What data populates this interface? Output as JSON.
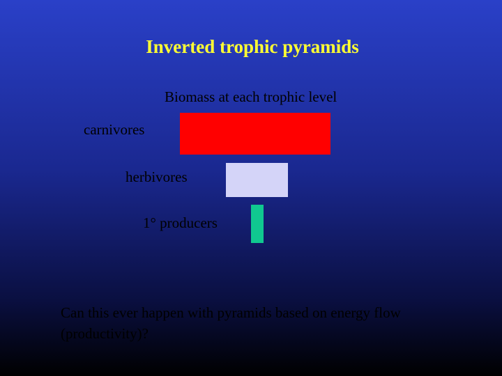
{
  "header": {
    "title": "Inverted trophic pyramids"
  },
  "diagram": {
    "heading": "Biomass at each trophic level",
    "levels": [
      {
        "label": "carnivores"
      },
      {
        "label": "herbivores"
      },
      {
        "label": "1° producers"
      }
    ]
  },
  "question": "Can this ever happen with pyramids based on energy flow (productivity)?"
}
